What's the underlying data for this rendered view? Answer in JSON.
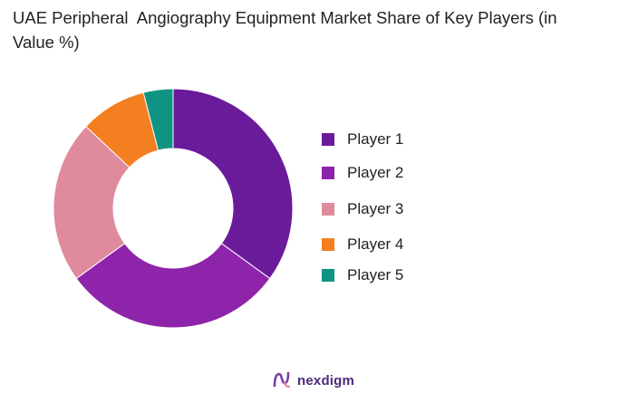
{
  "chart_data": {
    "type": "pie",
    "title": "UAE Peripheral  Angiography Equipment Market Share of Key Players (in Value %)",
    "series": [
      {
        "name": "Player 1",
        "value": 35,
        "color": "#6a1b9a"
      },
      {
        "name": "Player 2",
        "value": 30,
        "color": "#8e24aa"
      },
      {
        "name": "Player 3",
        "value": 22,
        "color": "#e08a9e"
      },
      {
        "name": "Player 4",
        "value": 9,
        "color": "#f47f20"
      },
      {
        "name": "Player 5",
        "value": 4,
        "color": "#0f9484"
      }
    ],
    "donut": true,
    "legend_position": "right"
  },
  "branding": {
    "name": "nexdigm",
    "color": "#4b2a7a"
  }
}
